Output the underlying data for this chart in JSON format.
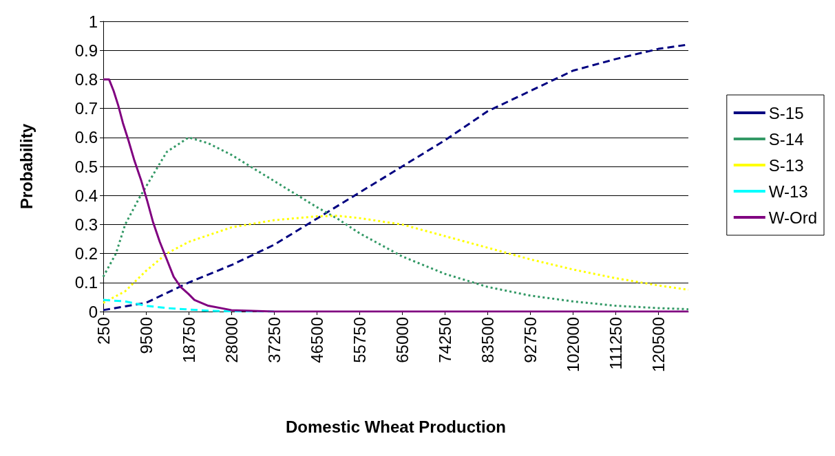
{
  "chart_data": {
    "type": "line",
    "xlabel": "Domestic Wheat Production",
    "ylabel": "Probability",
    "xlim": [
      250,
      127000
    ],
    "xticks": [
      250,
      9500,
      18750,
      28000,
      37250,
      46500,
      55750,
      65000,
      74250,
      83500,
      92750,
      102000,
      111250,
      120500
    ],
    "ylim": [
      0,
      1
    ],
    "yticks": [
      0,
      0.1,
      0.2,
      0.3,
      0.4,
      0.5,
      0.6,
      0.7,
      0.8,
      0.9,
      1
    ],
    "grid": "y",
    "legend": "right",
    "marker": "none",
    "series": [
      {
        "name": "S-15",
        "color": "#000080",
        "line_style": "dashed",
        "x": [
          250,
          9500,
          18750,
          28000,
          37250,
          46500,
          55750,
          65000,
          74250,
          83500,
          92750,
          102000,
          111250,
          120500,
          127000
        ],
        "values": [
          0.005,
          0.03,
          0.1,
          0.16,
          0.23,
          0.32,
          0.41,
          0.5,
          0.59,
          0.69,
          0.76,
          0.83,
          0.87,
          0.905,
          0.92
        ]
      },
      {
        "name": "S-14",
        "color": "#339966",
        "line_style": "dotted",
        "x": [
          250,
          3000,
          5000,
          8000,
          11000,
          14000,
          18750,
          23000,
          28000,
          37250,
          46500,
          51000,
          55750,
          65000,
          74250,
          83500,
          92750,
          102000,
          111250,
          120500,
          127000
        ],
        "values": [
          0.12,
          0.2,
          0.3,
          0.39,
          0.47,
          0.55,
          0.6,
          0.58,
          0.54,
          0.45,
          0.36,
          0.32,
          0.27,
          0.19,
          0.13,
          0.085,
          0.055,
          0.035,
          0.02,
          0.012,
          0.008
        ]
      },
      {
        "name": "S-13",
        "color": "#ffff00",
        "line_style": "dotted",
        "x": [
          250,
          5000,
          9500,
          14000,
          18750,
          28000,
          37250,
          46500,
          51000,
          55750,
          65000,
          74250,
          83500,
          92750,
          102000,
          111250,
          120500,
          127000
        ],
        "values": [
          0.03,
          0.07,
          0.14,
          0.2,
          0.24,
          0.29,
          0.315,
          0.328,
          0.33,
          0.322,
          0.3,
          0.26,
          0.22,
          0.18,
          0.145,
          0.115,
          0.09,
          0.075
        ]
      },
      {
        "name": "W-13",
        "color": "#00ffff",
        "line_style": "dashed",
        "x": [
          250,
          5000,
          9500,
          14000,
          18750,
          23000,
          28000,
          37250
        ],
        "values": [
          0.04,
          0.035,
          0.02,
          0.012,
          0.007,
          0.003,
          0.001,
          0
        ]
      },
      {
        "name": "W-Ord",
        "color": "#800080",
        "line_style": "solid",
        "x": [
          250,
          1500,
          2500,
          3500,
          4500,
          5700,
          7000,
          8500,
          9800,
          11000,
          12500,
          14000,
          15500,
          17000,
          18750,
          20000,
          23000,
          28000,
          37250,
          127000
        ],
        "values": [
          0.8,
          0.8,
          0.76,
          0.71,
          0.65,
          0.59,
          0.52,
          0.45,
          0.38,
          0.31,
          0.24,
          0.18,
          0.12,
          0.085,
          0.06,
          0.04,
          0.02,
          0.005,
          0,
          0
        ]
      }
    ]
  }
}
